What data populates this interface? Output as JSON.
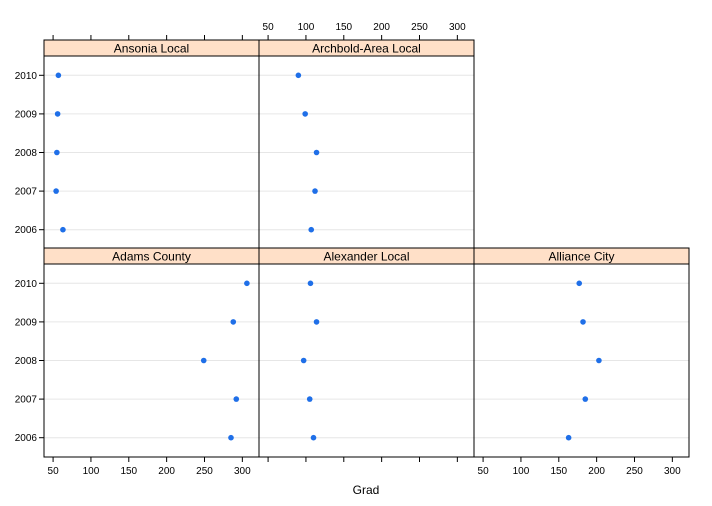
{
  "chart_data": {
    "type": "dotplot",
    "xlabel": "Grad",
    "xlim": [
      38,
      322
    ],
    "x_ticks": [
      50,
      100,
      150,
      200,
      250,
      300
    ],
    "years": [
      "2006",
      "2007",
      "2008",
      "2009",
      "2010"
    ],
    "grid": true,
    "colors": {
      "point": "#1f6fe8",
      "strip": "#ffe0c8",
      "gridline": "#e6e6e6",
      "border": "#000000"
    },
    "panels": [
      {
        "name": "Adams County",
        "values": {
          "2006": 285,
          "2007": 292,
          "2008": 249,
          "2009": 288,
          "2010": 306
        }
      },
      {
        "name": "Alexander Local",
        "values": {
          "2006": 110,
          "2007": 105,
          "2008": 97,
          "2009": 114,
          "2010": 106
        }
      },
      {
        "name": "Alliance City",
        "values": {
          "2006": 163,
          "2007": 185,
          "2008": 203,
          "2009": 182,
          "2010": 177
        }
      },
      {
        "name": "Ansonia Local",
        "values": {
          "2006": 63,
          "2007": 54,
          "2008": 55,
          "2009": 56,
          "2010": 57
        }
      },
      {
        "name": "Archbold-Area Local",
        "values": {
          "2006": 107,
          "2007": 112,
          "2008": 114,
          "2009": 99,
          "2010": 90
        }
      }
    ]
  }
}
